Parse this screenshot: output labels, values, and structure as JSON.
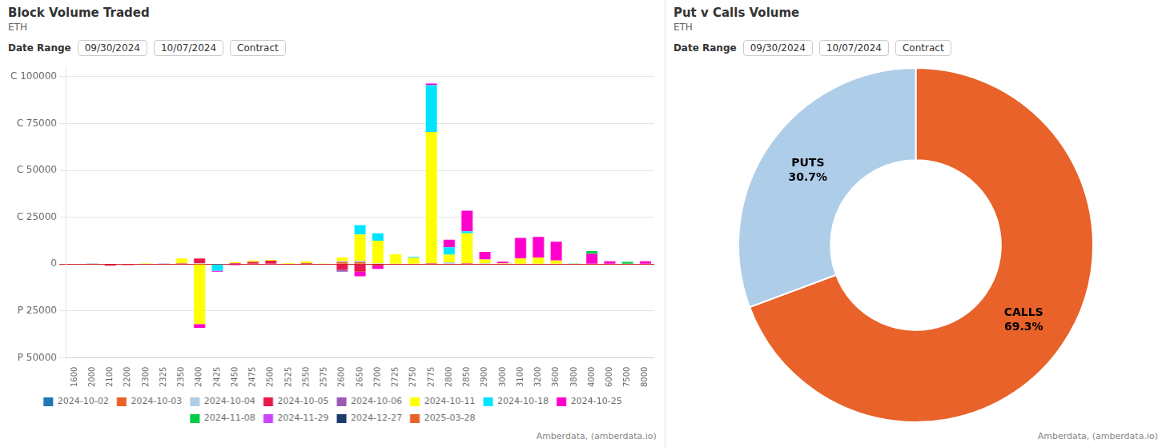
{
  "chart_data": [
    {
      "type": "bar",
      "title": "Block Volume Traded",
      "subtitle": "ETH",
      "annotations": [
        "Date Range",
        "09/30/2024",
        "10/07/2024",
        "Contract",
        "Amberdata, (amberdata.io)"
      ],
      "stacked": true,
      "grid": true,
      "legend": "bottom",
      "categories": [
        "1600",
        "2000",
        "2100",
        "2200",
        "2300",
        "2325",
        "2350",
        "2400",
        "2425",
        "2450",
        "2475",
        "2500",
        "2525",
        "2550",
        "2575",
        "2600",
        "2650",
        "2700",
        "2725",
        "2750",
        "2775",
        "2800",
        "2850",
        "2900",
        "3000",
        "3100",
        "3200",
        "3600",
        "3800",
        "4000",
        "6000",
        "7500",
        "8000"
      ],
      "ylim": [
        -50000,
        105000
      ],
      "yticks": [
        {
          "value": -50000,
          "label": "P 50000"
        },
        {
          "value": -25000,
          "label": "P 25000"
        },
        0,
        {
          "value": 25000,
          "label": "C 25000"
        },
        {
          "value": 50000,
          "label": "C 50000"
        },
        {
          "value": 75000,
          "label": "C 75000"
        },
        {
          "value": 100000,
          "label": "C 100000"
        }
      ],
      "series": [
        {
          "name": "2024-10-02",
          "color": "#1f77b4",
          "values": [
            null,
            150,
            null,
            null,
            null,
            100,
            null,
            null,
            null,
            null,
            null,
            null,
            null,
            null,
            null,
            null,
            null,
            null,
            null,
            null,
            null,
            null,
            null,
            null,
            null,
            null,
            null,
            null,
            null,
            null,
            null,
            null,
            null
          ]
        },
        {
          "name": "2024-10-03",
          "color": "#e8622a",
          "values": [
            300,
            -150,
            null,
            null,
            null,
            null,
            null,
            null,
            null,
            200,
            null,
            null,
            null,
            null,
            null,
            1200,
            1200,
            null,
            null,
            300,
            null,
            null,
            null,
            null,
            null,
            null,
            null,
            null,
            null,
            null,
            null,
            null,
            null
          ]
        },
        {
          "name": "2024-10-04",
          "color": "#aecde8",
          "values": [
            null,
            null,
            null,
            null,
            null,
            null,
            null,
            500,
            null,
            null,
            200,
            300,
            null,
            null,
            null,
            400,
            600,
            500,
            300,
            null,
            null,
            1000,
            null,
            500,
            null,
            null,
            null,
            null,
            null,
            null,
            null,
            null,
            null
          ]
        },
        {
          "name": "2024-10-05",
          "color": "#e8194b",
          "values": [
            null,
            null,
            -800,
            -500,
            -300,
            null,
            500,
            2500,
            null,
            400,
            1000,
            1500,
            null,
            600,
            null,
            -3000,
            -4000,
            -1000,
            null,
            null,
            500,
            null,
            500,
            null,
            null,
            null,
            null,
            null,
            null,
            null,
            null,
            null,
            null
          ]
        },
        {
          "name": "2024-10-06",
          "color": "#9b59b6",
          "values": [
            null,
            null,
            null,
            null,
            null,
            null,
            null,
            null,
            null,
            null,
            null,
            null,
            null,
            null,
            null,
            -1000,
            null,
            null,
            null,
            null,
            null,
            null,
            null,
            null,
            null,
            null,
            null,
            null,
            null,
            null,
            null,
            null,
            null
          ]
        },
        {
          "name": "2024-10-11",
          "color": "#ffff00",
          "values": [
            null,
            null,
            null,
            null,
            500,
            null,
            2500,
            -32000,
            null,
            500,
            800,
            500,
            600,
            800,
            400,
            2000,
            14000,
            12000,
            5000,
            3000,
            70000,
            4000,
            16000,
            2000,
            500,
            3000,
            3500,
            2000,
            null,
            null,
            null,
            null,
            null
          ]
        },
        {
          "name": "2024-10-18",
          "color": "#00e5ff",
          "values": [
            null,
            null,
            null,
            null,
            null,
            null,
            -200,
            null,
            -3500,
            null,
            null,
            null,
            null,
            null,
            null,
            null,
            5000,
            4000,
            null,
            600,
            25000,
            4000,
            1000,
            null,
            null,
            null,
            null,
            null,
            null,
            null,
            null,
            null,
            null
          ]
        },
        {
          "name": "2024-10-25",
          "color": "#ff00cc",
          "values": [
            null,
            null,
            null,
            null,
            null,
            null,
            null,
            -2000,
            -500,
            -500,
            null,
            -300,
            null,
            null,
            null,
            null,
            -2500,
            -1500,
            null,
            null,
            800,
            4000,
            11000,
            4000,
            800,
            11000,
            11000,
            10000,
            null,
            5500,
            1500,
            null,
            1500
          ]
        },
        {
          "name": "2024-11-08",
          "color": "#00cc44",
          "values": [
            null,
            null,
            null,
            null,
            null,
            null,
            null,
            null,
            null,
            null,
            null,
            null,
            null,
            null,
            null,
            null,
            null,
            null,
            null,
            null,
            null,
            null,
            null,
            null,
            null,
            null,
            null,
            null,
            400,
            1500,
            null,
            1200,
            null
          ]
        },
        {
          "name": "2024-11-29",
          "color": "#cc44ff",
          "values": [
            null,
            null,
            null,
            null,
            null,
            null,
            null,
            null,
            null,
            null,
            null,
            null,
            null,
            null,
            null,
            null,
            null,
            null,
            null,
            null,
            null,
            null,
            null,
            null,
            null,
            null,
            null,
            null,
            null,
            null,
            null,
            null,
            null
          ]
        },
        {
          "name": "2024-12-27",
          "color": "#1a3a6b",
          "values": [
            null,
            null,
            null,
            null,
            null,
            null,
            null,
            null,
            null,
            null,
            null,
            null,
            null,
            null,
            null,
            null,
            null,
            null,
            null,
            null,
            null,
            null,
            null,
            null,
            null,
            null,
            null,
            null,
            null,
            null,
            null,
            null,
            null
          ]
        },
        {
          "name": "2025-03-28",
          "color": "#e8622a",
          "values": [
            null,
            null,
            null,
            null,
            null,
            null,
            null,
            null,
            null,
            null,
            null,
            null,
            null,
            null,
            null,
            null,
            null,
            null,
            null,
            null,
            null,
            null,
            null,
            null,
            null,
            null,
            null,
            null,
            null,
            null,
            null,
            null,
            null
          ]
        }
      ]
    },
    {
      "type": "doughnut",
      "title": "Put v Calls Volume",
      "subtitle": "ETH",
      "annotations": [
        "Date Range",
        "09/30/2024",
        "10/07/2024",
        "Contract",
        "Amberdata, (amberdata.io)"
      ],
      "categories": [
        "CALLS",
        "PUTS"
      ],
      "values": [
        69.3,
        30.7
      ],
      "value_labels": [
        "69.3%",
        "30.7%"
      ],
      "colors": [
        "#e8622a",
        "#aecde8"
      ],
      "data_labels": true
    }
  ]
}
